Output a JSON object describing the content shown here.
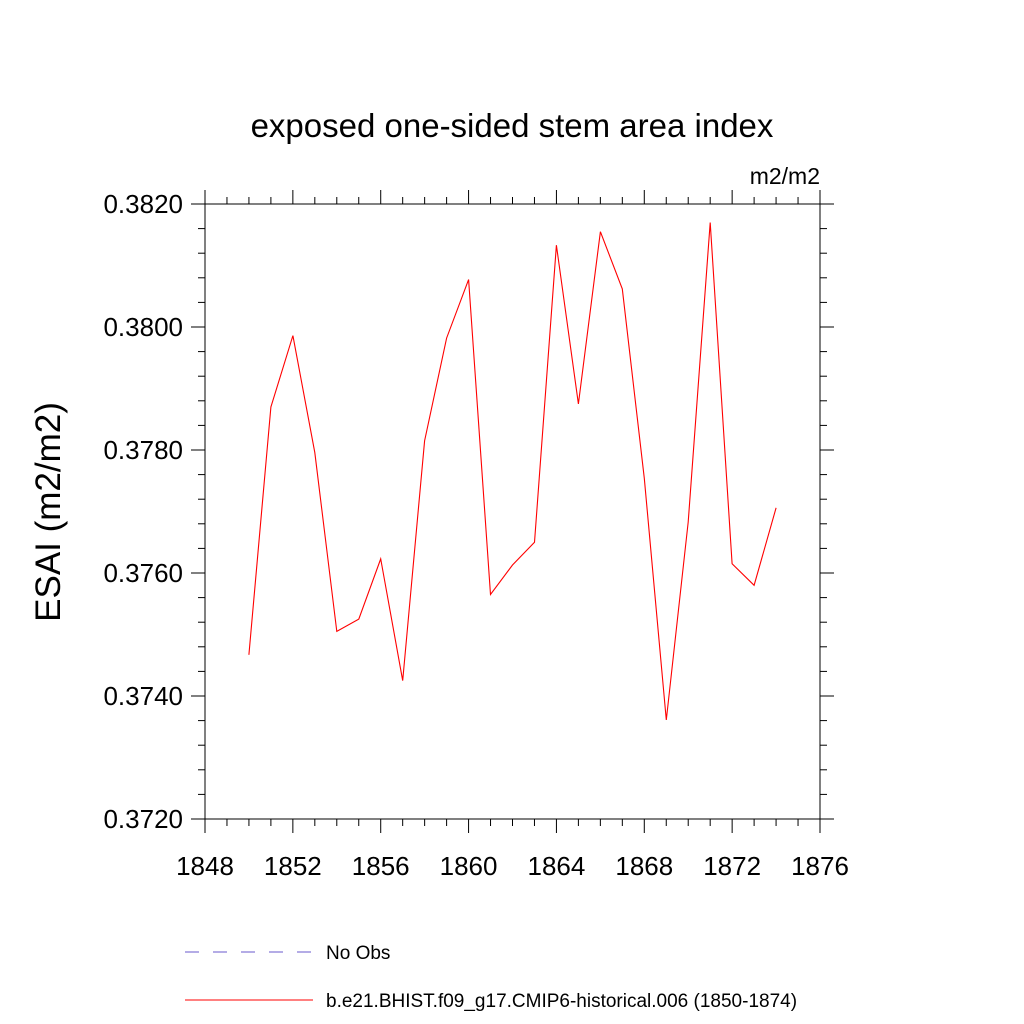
{
  "chart_data": {
    "type": "line",
    "title": "exposed one-sided stem area index",
    "units_label": "m2/m2",
    "ylabel": "ESAI  (m2/m2)",
    "xlabel": "",
    "xlim": [
      1848,
      1876
    ],
    "ylim": [
      0.372,
      0.382
    ],
    "x_ticks": [
      1848,
      1852,
      1856,
      1860,
      1864,
      1868,
      1872,
      1876
    ],
    "y_ticks": [
      "0.3720",
      "0.3740",
      "0.3760",
      "0.3780",
      "0.3800",
      "0.3820"
    ],
    "grid": false,
    "legend_position": "bottom",
    "series": [
      {
        "name": "b.e21.BHIST.f09_g17.CMIP6-historical.006 (1850-1874)",
        "color": "#ff0000",
        "style": "solid",
        "x": [
          1850,
          1851,
          1852,
          1853,
          1854,
          1855,
          1856,
          1857,
          1858,
          1859,
          1860,
          1861,
          1862,
          1863,
          1864,
          1865,
          1866,
          1867,
          1868,
          1869,
          1870,
          1871,
          1872,
          1873,
          1874
        ],
        "values": [
          0.37467,
          0.3787,
          0.37986,
          0.37796,
          0.37505,
          0.37525,
          0.37623,
          0.37425,
          0.37815,
          0.37982,
          0.38077,
          0.37565,
          0.37613,
          0.3765,
          0.38133,
          0.37875,
          0.38155,
          0.38062,
          0.37754,
          0.37361,
          0.37683,
          0.3817,
          0.37615,
          0.3758,
          0.37706
        ]
      }
    ],
    "legend": [
      {
        "label": "No Obs",
        "color": "#6a5acd",
        "style": "dashed"
      },
      {
        "label": "b.e21.BHIST.f09_g17.CMIP6-historical.006 (1850-1874)",
        "color": "#ff0000",
        "style": "solid"
      }
    ]
  }
}
